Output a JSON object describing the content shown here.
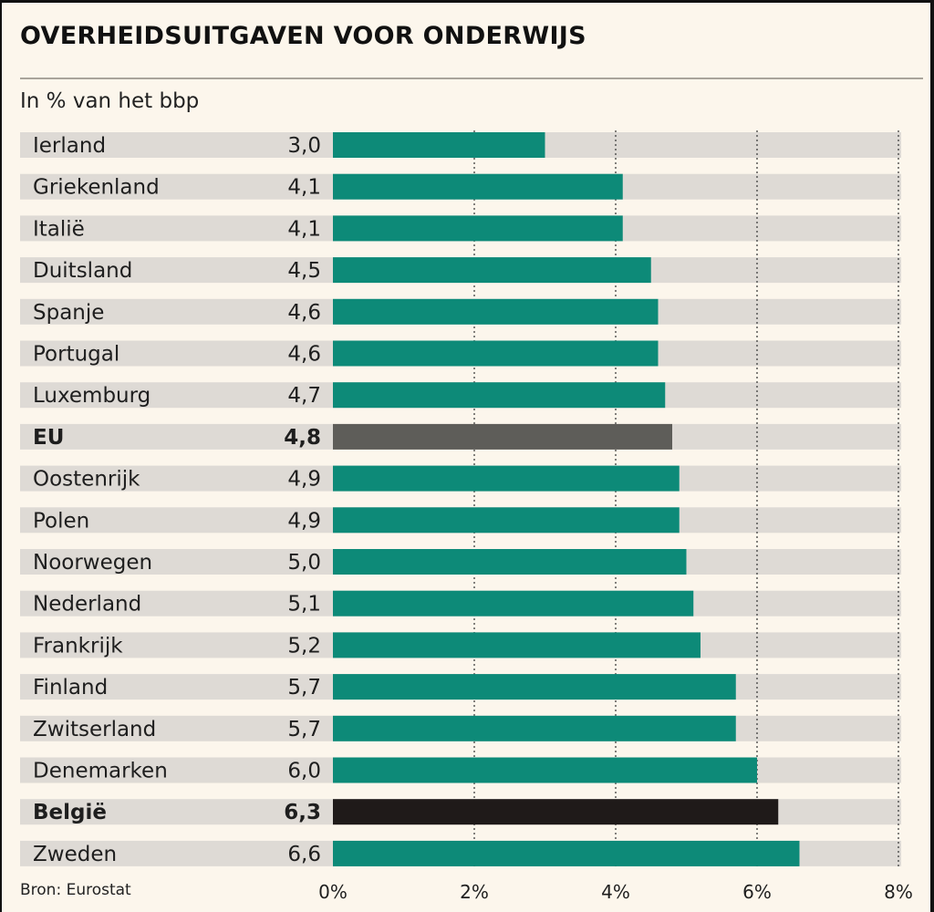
{
  "title": "OVERHEIDSUITGAVEN VOOR ONDERWIJS",
  "subtitle": "In % van het bbp",
  "source": "Bron: Eurostat",
  "colors": {
    "background": "#fcf6ec",
    "row_band": "#dedad5",
    "bar_default": "#0d8a78",
    "bar_eu": "#5e5d59",
    "bar_belgium": "#1f1a19",
    "eu_text": "#6a6965"
  },
  "chart_data": {
    "type": "bar",
    "orientation": "horizontal",
    "title": "OVERHEIDSUITGAVEN VOOR ONDERWIJS",
    "subtitle": "In % van het bbp",
    "xlim": [
      0,
      8
    ],
    "grid": true,
    "categories": [
      "Ierland",
      "Griekenland",
      "Italië",
      "Duitsland",
      "Spanje",
      "Portugal",
      "Luxemburg",
      "EU",
      "Oostenrijk",
      "Polen",
      "Noorwegen",
      "Nederland",
      "Frankrijk",
      "Finland",
      "Zwitserland",
      "Denemarken",
      "België",
      "Zweden"
    ],
    "values": [
      3.0,
      4.1,
      4.1,
      4.5,
      4.6,
      4.6,
      4.7,
      4.8,
      4.9,
      4.9,
      5.0,
      5.1,
      5.2,
      5.7,
      5.7,
      6.0,
      6.3,
      6.6
    ],
    "value_labels": [
      "3,0",
      "4,1",
      "4,1",
      "4,5",
      "4,6",
      "4,6",
      "4,7",
      "4,8",
      "4,9",
      "4,9",
      "5,0",
      "5,1",
      "5,2",
      "5,7",
      "5,7",
      "6,0",
      "6,3",
      "6,6"
    ],
    "highlight": {
      "EU": "eu",
      "België": "belgium"
    },
    "x_ticks": [
      0,
      2,
      4,
      6,
      8
    ],
    "x_tick_labels": [
      "0%",
      "2%",
      "4%",
      "6%",
      "8%"
    ]
  }
}
